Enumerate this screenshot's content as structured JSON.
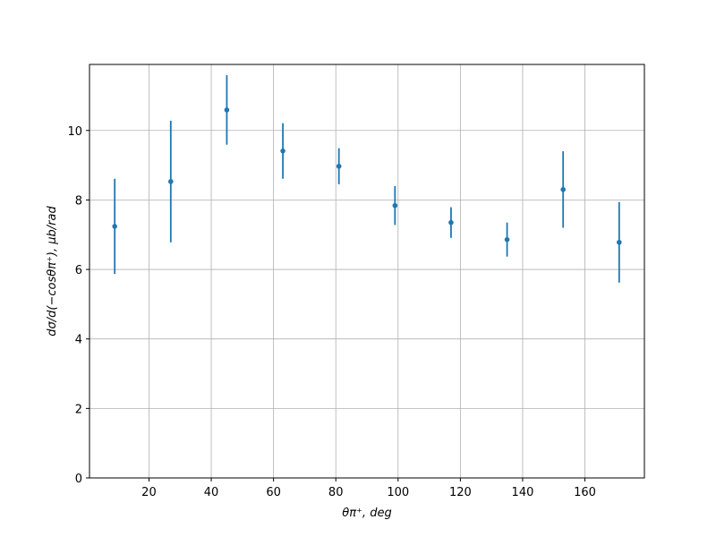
{
  "chart_data": {
    "type": "errorbar",
    "xlabel": "θπ⁺, deg",
    "ylabel": "dσ/d(−cosθπ⁺), μb/rad",
    "x": [
      9,
      27,
      45,
      63,
      81,
      99,
      117,
      135,
      153,
      171
    ],
    "series": [
      {
        "color": "#1f77b4",
        "values": [
          7.24,
          8.53,
          10.59,
          9.41,
          8.97,
          7.84,
          7.35,
          6.86,
          8.3,
          6.78
        ],
        "errors": [
          1.37,
          1.75,
          1.0,
          0.8,
          0.52,
          0.56,
          0.44,
          0.49,
          1.1,
          1.16
        ]
      }
    ],
    "xlim": [
      0.9,
      179.1
    ],
    "xticks": [
      20,
      40,
      60,
      80,
      100,
      120,
      140,
      160
    ],
    "ylim": [
      0,
      11.9
    ],
    "yticks": [
      0,
      2,
      4,
      6,
      8,
      10
    ],
    "grid": true
  }
}
